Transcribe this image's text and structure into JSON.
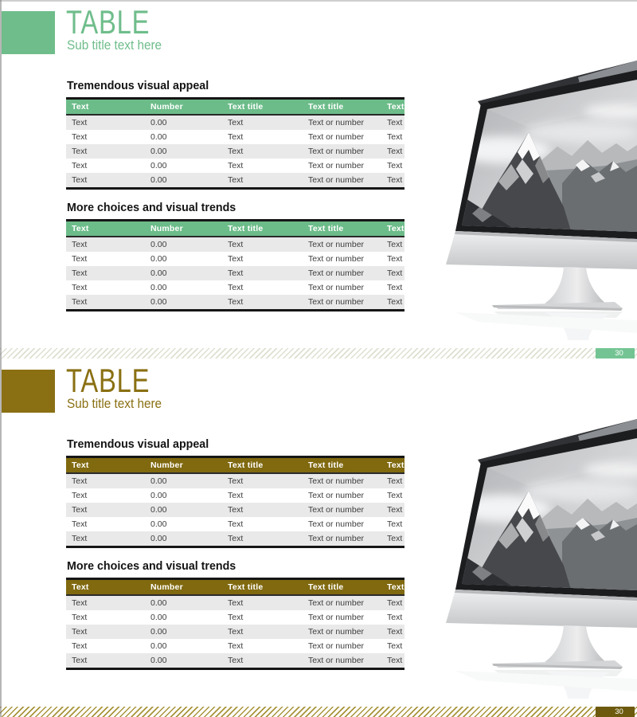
{
  "shared": {
    "table_headers": [
      "Text",
      "Number",
      "Text title",
      "Text title",
      "Text"
    ],
    "rows": [
      [
        "Text",
        "0.00",
        "Text",
        "Text or number",
        "Text"
      ],
      [
        "Text",
        "0.00",
        "Text",
        "Text or number",
        "Text"
      ],
      [
        "Text",
        "0.00",
        "Text",
        "Text or number",
        "Text"
      ],
      [
        "Text",
        "0.00",
        "Text",
        "Text or number",
        "Text"
      ],
      [
        "Text",
        "0.00",
        "Text",
        "Text or number",
        "Text"
      ]
    ],
    "section_titles": [
      "Tremendous visual appeal",
      "More choices and visual trends"
    ]
  },
  "slides": [
    {
      "title": "TABLE",
      "subtitle": "Sub title text here",
      "page_number": "30",
      "accent": "#6fbd8b",
      "header_bg": "#6cbc89",
      "page_box_bg": "#74c493",
      "stripe_color": "#dce0d0"
    },
    {
      "title": "TABLE",
      "subtitle": "Sub title text here",
      "page_number": "30",
      "accent": "#8a7013",
      "header_bg": "#80690f",
      "page_box_bg": "#6d5a0e",
      "stripe_color": "#a8943a"
    }
  ],
  "monitor": {
    "description": "imac-style monitor photo showing grayscale snowy mountains"
  }
}
